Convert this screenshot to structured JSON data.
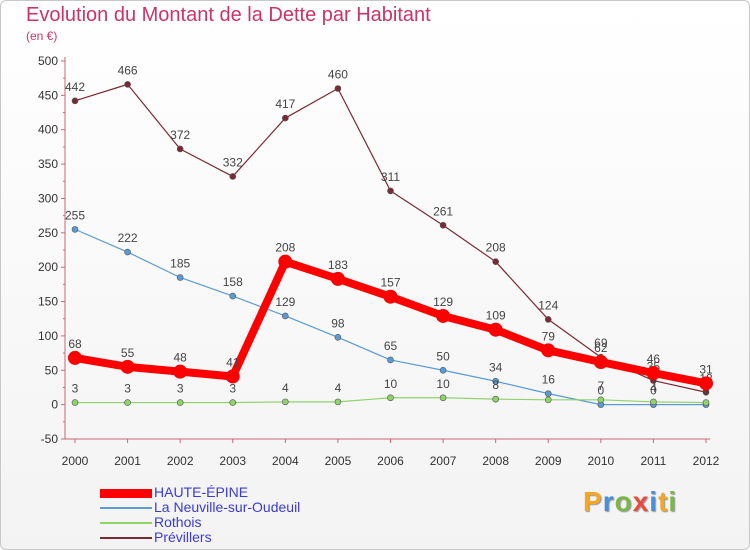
{
  "title": "Evolution du Montant de la Dette par Habitant",
  "subtitle": "(en €)",
  "logo": {
    "letters": [
      "P",
      "r",
      "o",
      "x",
      "i",
      "t",
      "i"
    ],
    "colors": [
      "#f5a623",
      "#4a90d9",
      "#7ab648",
      "#e84c3d",
      "#4a90d9",
      "#f5a623",
      "#7ab648"
    ]
  },
  "chart_data": {
    "type": "line",
    "x": [
      "2000",
      "2001",
      "2002",
      "2003",
      "2004",
      "2005",
      "2006",
      "2007",
      "2008",
      "2009",
      "2010",
      "2011",
      "2012"
    ],
    "ylim": [
      -50,
      500
    ],
    "yticks": [
      -50,
      0,
      50,
      100,
      150,
      200,
      250,
      300,
      350,
      400,
      450,
      500
    ],
    "grid": false,
    "legend_placement": "bottom-left",
    "series": [
      {
        "name": "Prévillers",
        "color": "#7a2a35",
        "values": [
          442,
          466,
          372,
          332,
          417,
          460,
          311,
          261,
          208,
          124,
          69,
          35,
          18
        ],
        "labels": [
          "442",
          "466",
          "372",
          "332",
          "417",
          "460",
          "311",
          "261",
          "208",
          "124",
          "69",
          "35",
          "18"
        ]
      },
      {
        "name": "La Neuville-sur-Oudeuil",
        "color": "#5a9bd5",
        "values": [
          255,
          222,
          185,
          158,
          129,
          98,
          65,
          50,
          34,
          16,
          0,
          0,
          0
        ],
        "labels": [
          "255",
          "222",
          "185",
          "158",
          "129",
          "98",
          "65",
          "50",
          "34",
          "16",
          "0",
          "0",
          "0"
        ]
      },
      {
        "name": "Rothois",
        "color": "#8fd46a",
        "values": [
          3,
          3,
          3,
          3,
          4,
          4,
          10,
          10,
          8,
          7,
          7,
          4,
          3
        ],
        "labels": [
          "3",
          "3",
          "3",
          "3",
          "4",
          "4",
          "10",
          "10",
          "8",
          "",
          "7",
          "4",
          ""
        ]
      },
      {
        "name": "HAUTE-ÉPINE",
        "color": "#ff0000",
        "values": [
          68,
          55,
          48,
          41,
          208,
          183,
          157,
          129,
          109,
          79,
          62,
          46,
          31
        ],
        "labels": [
          "68",
          "55",
          "48",
          "41",
          "208",
          "183",
          "157",
          "129",
          "109",
          "79",
          "62",
          "46",
          "31"
        ]
      }
    ],
    "legend": [
      {
        "name": "HAUTE-ÉPINE",
        "color": "#ff0000"
      },
      {
        "name": "La Neuville-sur-Oudeuil",
        "color": "#5a9bd5"
      },
      {
        "name": "Rothois",
        "color": "#8fd46a"
      },
      {
        "name": "Prévillers",
        "color": "#7a2a35"
      }
    ]
  }
}
